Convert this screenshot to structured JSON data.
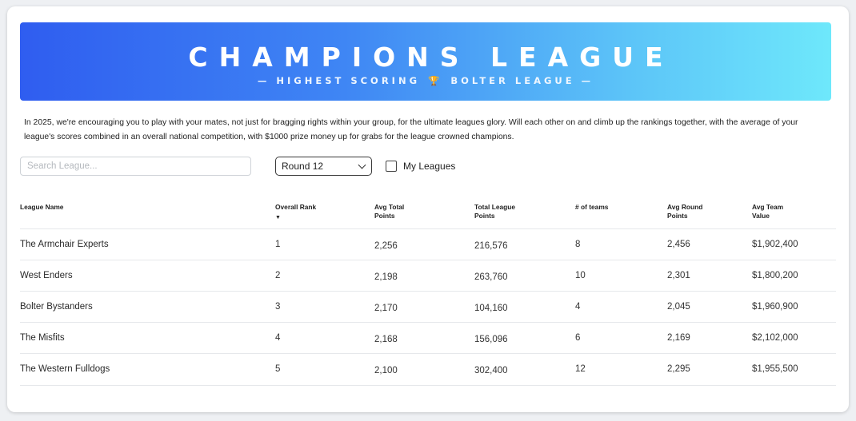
{
  "banner": {
    "title": "CHAMPIONS LEAGUE",
    "subtitle_left": "— HIGHEST SCORING",
    "subtitle_right": "BOLTER LEAGUE —",
    "icon": "trophy-icon"
  },
  "intro": {
    "line1": "In 2025, we're encouraging you to play with your mates, not just for bragging rights within your group, for the ultimate leagues glory. Will each other on and climb up the rankings together, with the average of your",
    "line2": "league's scores combined in an overall national competition, with $1000 prize money up for grabs for the league crowned champions."
  },
  "controls": {
    "search_placeholder": "Search League...",
    "round_selected": "Round 12",
    "my_leagues_label": "My Leagues",
    "my_leagues_checked": false
  },
  "table": {
    "headers": {
      "name": "League Name",
      "rank": "Overall Rank",
      "avg_total_1": "Avg Total",
      "avg_total_2": "Points",
      "total_league_1": "Total League",
      "total_league_2": "Points",
      "teams": "# of teams",
      "avg_round_1": "Avg Round",
      "avg_round_2": "Points",
      "avg_value_1": "Avg Team",
      "avg_value_2": "Value",
      "sort_indicator": "▼"
    },
    "rows": [
      {
        "name": "The Armchair Experts",
        "rank": "1",
        "avg_total": "2,256",
        "total_league": "216,576",
        "teams": "8",
        "avg_round": "2,456",
        "avg_value": "$1,902,400"
      },
      {
        "name": "West Enders",
        "rank": "2",
        "avg_total": "2,198",
        "total_league": "263,760",
        "teams": "10",
        "avg_round": "2,301",
        "avg_value": "$1,800,200"
      },
      {
        "name": "Bolter Bystanders",
        "rank": "3",
        "avg_total": "2,170",
        "total_league": "104,160",
        "teams": "4",
        "avg_round": "2,045",
        "avg_value": "$1,960,900"
      },
      {
        "name": "The Misfits",
        "rank": "4",
        "avg_total": "2,168",
        "total_league": "156,096",
        "teams": "6",
        "avg_round": "2,169",
        "avg_value": "$2,102,000"
      },
      {
        "name": "The Western Fulldogs",
        "rank": "5",
        "avg_total": "2,100",
        "total_league": "302,400",
        "teams": "12",
        "avg_round": "2,295",
        "avg_value": "$1,955,500"
      }
    ]
  }
}
